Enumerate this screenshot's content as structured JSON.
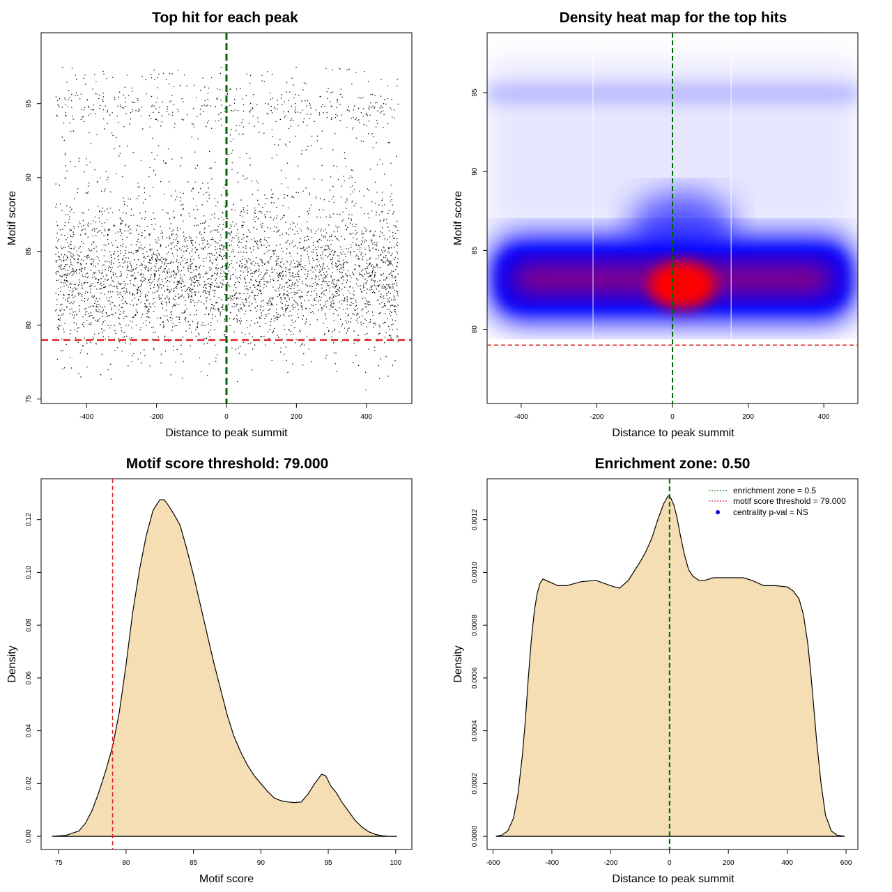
{
  "chart_data": [
    {
      "id": "scatter",
      "type": "scatter",
      "title": "Top hit for each peak",
      "xlabel": "Distance to peak summit",
      "ylabel": "Motif score",
      "xlim": [
        -530,
        530
      ],
      "ylim": [
        74.7,
        99.8
      ],
      "xticks": [
        -400,
        -200,
        0,
        200,
        400
      ],
      "yticks": [
        75,
        80,
        85,
        90,
        95
      ],
      "x_range": [
        -490,
        490
      ],
      "score_distribution": {
        "mode": 83.2,
        "sd": 2.4,
        "secondary_mode": 94.7,
        "min": 75.5,
        "max": 99
      },
      "threshold": {
        "axis": "y",
        "value": 79.0,
        "color": "#dd2222"
      },
      "center_line": {
        "axis": "x",
        "value": 0,
        "color": "#006600"
      },
      "point_color": "#000000"
    },
    {
      "id": "heatmap",
      "type": "heatmap",
      "title": "Density heat map for the top hits",
      "xlabel": "Distance to peak summit",
      "ylabel": "Motif score",
      "xlim": [
        -490,
        490
      ],
      "ylim": [
        75.3,
        98.8
      ],
      "xticks": [
        -400,
        -200,
        0,
        200,
        400
      ],
      "yticks": [
        80,
        85,
        90,
        95
      ],
      "band_center_score": 83.2,
      "peak_location": {
        "x": 25,
        "y": 82.8
      },
      "colors": {
        "low": "#ffffff",
        "mid": "#0000ff",
        "high": "#ff0000"
      },
      "threshold": {
        "axis": "y",
        "value": 79.0,
        "color": "#dd2222"
      },
      "center_line": {
        "axis": "x",
        "value": 0,
        "color": "#006600"
      }
    },
    {
      "id": "score-density",
      "type": "area",
      "title": "Motif score threshold: 79.000",
      "xlabel": "Motif score",
      "ylabel": "Density",
      "xlim": [
        73.7,
        101.2
      ],
      "ylim": [
        -0.005,
        0.1355
      ],
      "xticks": [
        75,
        80,
        85,
        90,
        95,
        100
      ],
      "yticks": [
        0.0,
        0.02,
        0.04,
        0.06,
        0.08,
        0.1,
        0.12
      ],
      "ytick_labels": [
        "0.00",
        "0.02",
        "0.04",
        "0.06",
        "0.08",
        "0.10",
        "0.12"
      ],
      "x": [
        74.5,
        75.5,
        76.5,
        77.0,
        77.5,
        78.0,
        78.5,
        79.0,
        79.5,
        80.0,
        80.5,
        81.0,
        81.5,
        82.0,
        82.5,
        82.8,
        83.0,
        83.5,
        84.0,
        84.5,
        85.0,
        85.5,
        86.0,
        86.5,
        87.0,
        87.5,
        88.0,
        88.5,
        89.0,
        89.5,
        90.0,
        90.5,
        91.0,
        91.5,
        92.0,
        92.5,
        93.0,
        93.5,
        94.0,
        94.5,
        94.8,
        95.2,
        95.6,
        96.0,
        96.5,
        97.0,
        97.5,
        98.0,
        98.5,
        99.0,
        99.5,
        100.1
      ],
      "y": [
        0.0,
        0.0003,
        0.002,
        0.005,
        0.01,
        0.017,
        0.025,
        0.034,
        0.047,
        0.065,
        0.085,
        0.101,
        0.114,
        0.1235,
        0.1275,
        0.1276,
        0.1265,
        0.1225,
        0.118,
        0.109,
        0.099,
        0.088,
        0.077,
        0.066,
        0.056,
        0.046,
        0.038,
        0.032,
        0.027,
        0.023,
        0.02,
        0.017,
        0.0145,
        0.0135,
        0.013,
        0.0128,
        0.013,
        0.016,
        0.02,
        0.0235,
        0.023,
        0.019,
        0.0165,
        0.013,
        0.0095,
        0.006,
        0.0035,
        0.0017,
        0.0007,
        0.0002,
        0.0,
        0.0
      ],
      "threshold": {
        "axis": "x",
        "value": 79.0,
        "color": "#dd2222"
      },
      "fill": "#f5deb3"
    },
    {
      "id": "distance-density",
      "type": "area",
      "title": "Enrichment zone: 0.50",
      "xlabel": "Distance to peak summit",
      "ylabel": "Density",
      "xlim": [
        -620,
        640
      ],
      "ylim": [
        -5e-05,
        0.001355
      ],
      "xticks": [
        -600,
        -400,
        -200,
        0,
        200,
        400,
        600
      ],
      "yticks": [
        0.0,
        0.0002,
        0.0004,
        0.0006,
        0.0008,
        0.001,
        0.0012
      ],
      "ytick_labels": [
        "0.0000",
        "0.0002",
        "0.0004",
        "0.0006",
        "0.0008",
        "0.0010",
        "0.0012"
      ],
      "x": [
        -590,
        -570,
        -550,
        -530,
        -515,
        -500,
        -490,
        -480,
        -470,
        -460,
        -450,
        -440,
        -430,
        -420,
        -400,
        -380,
        -350,
        -300,
        -250,
        -200,
        -170,
        -140,
        -120,
        -100,
        -80,
        -60,
        -40,
        -20,
        -5,
        0,
        5,
        15,
        25,
        35,
        50,
        65,
        80,
        100,
        120,
        150,
        200,
        250,
        280,
        320,
        360,
        400,
        420,
        440,
        455,
        470,
        480,
        490,
        500,
        515,
        530,
        550,
        570,
        595
      ],
      "y": [
        0.0,
        5e-06,
        2e-05,
        7e-05,
        0.00016,
        0.00031,
        0.00044,
        0.0006,
        0.00074,
        0.00085,
        0.00092,
        0.00096,
        0.000975,
        0.00097,
        0.00096,
        0.00095,
        0.00095,
        0.000965,
        0.00097,
        0.00095,
        0.00094,
        0.00097,
        0.001005,
        0.00104,
        0.00108,
        0.00113,
        0.0012,
        0.00126,
        0.00129,
        0.00129,
        0.00128,
        0.001255,
        0.00121,
        0.00115,
        0.00107,
        0.00101,
        0.000985,
        0.00097,
        0.00097,
        0.00098,
        0.00098,
        0.00098,
        0.00097,
        0.00095,
        0.00095,
        0.000945,
        0.00093,
        0.0009,
        0.00084,
        0.00073,
        0.00062,
        0.00049,
        0.00036,
        0.0002,
        8e-05,
        2e-05,
        4e-06,
        0.0
      ],
      "center_line": {
        "axis": "x",
        "value": 0,
        "color": "#006600"
      },
      "fill": "#f5deb3",
      "legend": {
        "position": "top-right",
        "entries": [
          {
            "label": "enrichment zone = 0.5",
            "kind": "dotted-line",
            "color": "#008800"
          },
          {
            "label": "motif score threshold = 79.000",
            "kind": "dotted-line",
            "color": "#dd2222"
          },
          {
            "label": "centrality p-val = NS",
            "kind": "point",
            "color": "#0000cc"
          }
        ]
      }
    }
  ]
}
